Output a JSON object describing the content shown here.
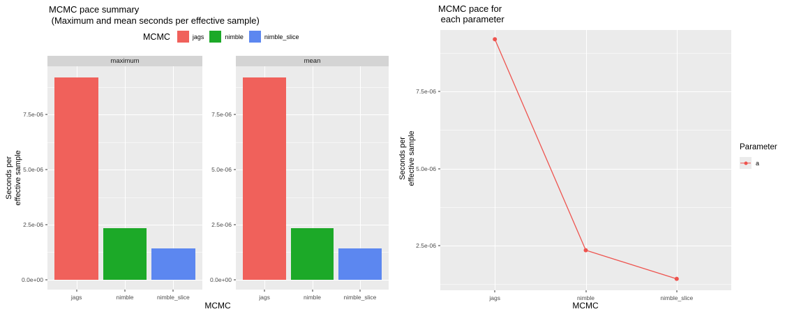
{
  "ui": {
    "left": {
      "title1": "MCMC pace summary",
      "title2": " (Maximum and mean seconds per effective sample)",
      "legend_title": "MCMC",
      "ylab1": "Seconds per",
      "ylab2": "effective sample",
      "xlab": "MCMC"
    },
    "right": {
      "title1": "MCMC pace for",
      "title2": " each parameter",
      "legend_title": "Parameter",
      "ylab1": "Seconds per",
      "ylab2": "effective sample",
      "xlab": "MCMC"
    }
  },
  "colors": {
    "panel_bg": "#EBEBEB",
    "strip_bg": "#D4D4D4",
    "grid_major": "#FFFFFF",
    "tick_text": "#4D4D4D"
  },
  "chart_data": [
    {
      "type": "bar",
      "title": "MCMC pace summary (Maximum and mean seconds per effective sample)",
      "facets": [
        "maximum",
        "mean"
      ],
      "categories": [
        "jags",
        "nimble",
        "nimble_slice"
      ],
      "series": [
        {
          "name": "maximum",
          "values": [
            9.2e-06,
            2.35e-06,
            1.42e-06
          ]
        },
        {
          "name": "mean",
          "values": [
            9.2e-06,
            2.35e-06,
            1.42e-06
          ]
        }
      ],
      "xlabel": "MCMC",
      "ylabel": "Seconds per effective sample",
      "yticks": [
        0,
        2.5e-06,
        5e-06,
        7.5e-06
      ],
      "ytick_labels": [
        "0.0e+00",
        "2.5e-06",
        "5.0e-06",
        "7.5e-06"
      ],
      "ylim": [
        -4.5e-07,
        9.7e-06
      ],
      "grid": true,
      "legend_position": "top",
      "legend_title": "MCMC",
      "legend_entries": [
        "jags",
        "nimble",
        "nimble_slice"
      ],
      "bar_colors": [
        "#F0615B",
        "#1CA928",
        "#5C87F0"
      ]
    },
    {
      "type": "line",
      "title": "MCMC pace for each parameter",
      "categories": [
        "jags",
        "nimble",
        "nimble_slice"
      ],
      "series": [
        {
          "name": "a",
          "values": [
            9.2e-06,
            2.35e-06,
            1.42e-06
          ]
        }
      ],
      "xlabel": "MCMC",
      "ylabel": "Seconds per effective sample",
      "yticks": [
        2.5e-06,
        5e-06,
        7.5e-06
      ],
      "ytick_labels": [
        "2.5e-06",
        "5.0e-06",
        "7.5e-06"
      ],
      "ylim": [
        1.05e-06,
        9.5e-06
      ],
      "grid": true,
      "legend_position": "right",
      "legend_title": "Parameter",
      "legend_entries": [
        "a"
      ],
      "line_color": "#EE534E"
    }
  ]
}
